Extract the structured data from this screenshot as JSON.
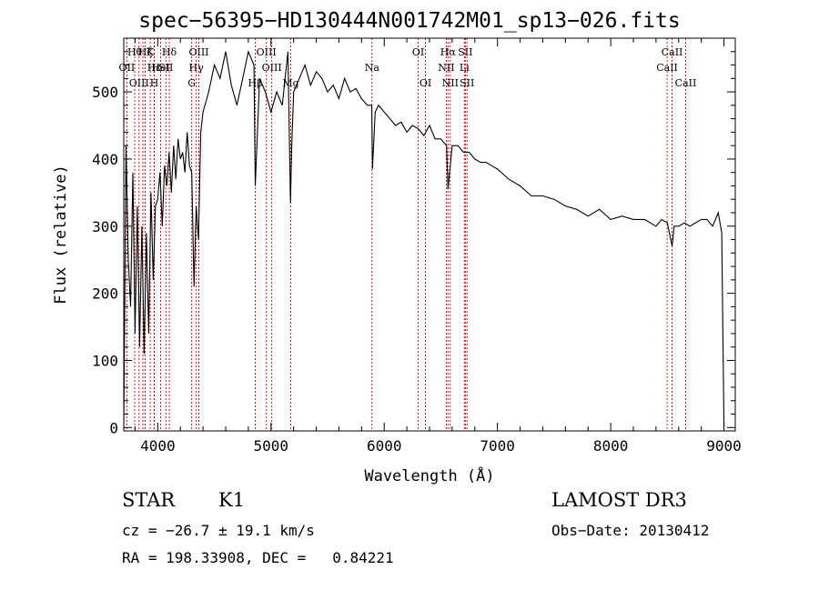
{
  "chart_data": {
    "type": "line",
    "title": "spec−56395−HD130444N001742M01_sp13−026.fits",
    "xlabel": "Wavelength (Å)",
    "ylabel": "Flux (relative)",
    "xlim": [
      3700,
      9100
    ],
    "ylim": [
      -5,
      580
    ],
    "xticks": [
      4000,
      5000,
      6000,
      7000,
      8000,
      9000
    ],
    "yticks": [
      0,
      100,
      200,
      300,
      400,
      500
    ],
    "x": [
      3700,
      3720,
      3740,
      3760,
      3780,
      3800,
      3820,
      3840,
      3860,
      3880,
      3900,
      3920,
      3940,
      3960,
      3980,
      4000,
      4020,
      4040,
      4060,
      4080,
      4100,
      4120,
      4140,
      4160,
      4180,
      4200,
      4220,
      4240,
      4260,
      4280,
      4300,
      4320,
      4340,
      4360,
      4380,
      4400,
      4450,
      4500,
      4550,
      4600,
      4650,
      4700,
      4750,
      4800,
      4850,
      4861,
      4900,
      4950,
      5000,
      5050,
      5100,
      5150,
      5172,
      5183,
      5200,
      5250,
      5300,
      5350,
      5400,
      5450,
      5500,
      5550,
      5600,
      5650,
      5700,
      5750,
      5800,
      5850,
      5890,
      5896,
      5920,
      5950,
      6000,
      6050,
      6100,
      6150,
      6200,
      6250,
      6300,
      6350,
      6400,
      6450,
      6500,
      6550,
      6563,
      6600,
      6650,
      6700,
      6750,
      6800,
      6850,
      6900,
      6950,
      7000,
      7100,
      7200,
      7300,
      7400,
      7500,
      7600,
      7700,
      7800,
      7900,
      8000,
      8100,
      8200,
      8300,
      8400,
      8450,
      8500,
      8542,
      8560,
      8600,
      8650,
      8700,
      8750,
      8800,
      8850,
      8900,
      8950,
      8980,
      9000
    ],
    "y": [
      0,
      420,
      250,
      180,
      380,
      140,
      330,
      120,
      300,
      110,
      290,
      140,
      350,
      220,
      330,
      340,
      380,
      300,
      390,
      360,
      410,
      350,
      420,
      370,
      430,
      400,
      410,
      380,
      440,
      390,
      380,
      210,
      330,
      280,
      440,
      470,
      500,
      540,
      520,
      560,
      510,
      480,
      520,
      560,
      540,
      360,
      520,
      500,
      470,
      500,
      480,
      560,
      335,
      420,
      500,
      520,
      540,
      510,
      530,
      520,
      500,
      510,
      490,
      520,
      500,
      505,
      490,
      480,
      480,
      385,
      470,
      480,
      470,
      460,
      450,
      455,
      440,
      450,
      445,
      435,
      450,
      430,
      430,
      420,
      355,
      420,
      420,
      410,
      410,
      400,
      395,
      395,
      390,
      385,
      370,
      360,
      345,
      345,
      340,
      330,
      325,
      315,
      325,
      310,
      315,
      310,
      310,
      300,
      310,
      305,
      270,
      300,
      300,
      305,
      300,
      305,
      310,
      310,
      300,
      320,
      290,
      0
    ],
    "series": [
      {
        "name": "Flux",
        "color": "#000000"
      }
    ],
    "line_color": "#c8000a",
    "lines": [
      {
        "w": 3727,
        "label": "OII",
        "row": 1
      },
      {
        "w": 3797,
        "label": "Hθ",
        "row": 0
      },
      {
        "w": 3835,
        "label": "OIII",
        "row": 2
      },
      {
        "w": 3869,
        "label": "",
        "row": -1
      },
      {
        "w": 3889,
        "label": "Hζ",
        "row": 0
      },
      {
        "w": 3934,
        "label": "K",
        "row": 0
      },
      {
        "w": 3968,
        "label": "Hε",
        "row": 1
      },
      {
        "w": 3970,
        "label": "H",
        "row": 2
      },
      {
        "w": 4026,
        "label": "HeI",
        "row": 1
      },
      {
        "w": 4072,
        "label": "SII",
        "row": 1
      },
      {
        "w": 4102,
        "label": "Hδ",
        "row": 0
      },
      {
        "w": 4300,
        "label": "G",
        "row": 2
      },
      {
        "w": 4340,
        "label": "Hγ",
        "row": 1
      },
      {
        "w": 4363,
        "label": "OIII",
        "row": 0
      },
      {
        "w": 4861,
        "label": "Hβ",
        "row": 2
      },
      {
        "w": 4959,
        "label": "OIII",
        "row": 0
      },
      {
        "w": 5007,
        "label": "OIII",
        "row": 1
      },
      {
        "w": 5175,
        "label": "Mg",
        "row": 2
      },
      {
        "w": 5892,
        "label": "Na",
        "row": 1
      },
      {
        "w": 6300,
        "label": "OI",
        "row": 0
      },
      {
        "w": 6364,
        "label": "OI",
        "row": 2
      },
      {
        "w": 6548,
        "label": "NII",
        "row": 1
      },
      {
        "w": 6563,
        "label": "Hα",
        "row": 0
      },
      {
        "w": 6583,
        "label": "NII",
        "row": 2
      },
      {
        "w": 6716,
        "label": "SII",
        "row": 0
      },
      {
        "w": 6731,
        "label": "SII",
        "row": 2
      },
      {
        "w": 6708,
        "label": "Li",
        "row": 1
      },
      {
        "w": 8498,
        "label": "CaII",
        "row": 1
      },
      {
        "w": 8542,
        "label": "CaII",
        "row": 0
      },
      {
        "w": 8662,
        "label": "CaII",
        "row": 2
      }
    ]
  },
  "info": {
    "class_label": "STAR",
    "subclass": "K1",
    "survey": "LAMOST DR3",
    "cz": "cz = −26.7 ± 19.1 km/s",
    "obs_date": "Obs−Date: 20130412",
    "radec": "RA = 198.33908, DEC =   0.84221"
  }
}
